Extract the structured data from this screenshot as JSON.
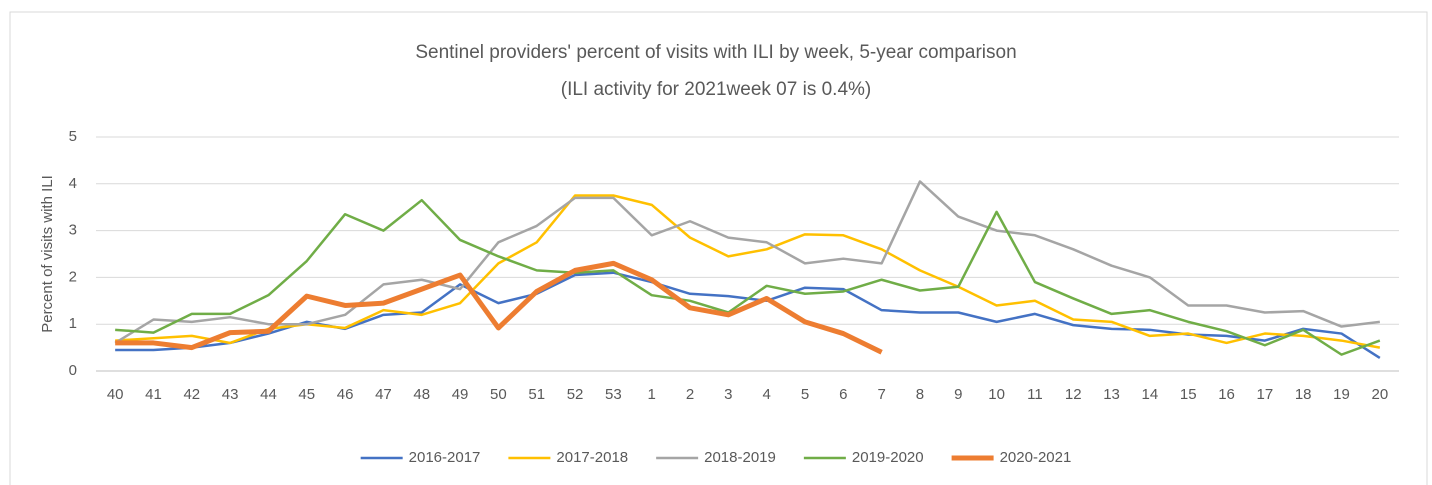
{
  "chart_data": {
    "type": "line",
    "title": "Sentinel providers' percent of visits with ILI by week, 5-year comparison",
    "subtitle": "(ILI activity for 2021week 07 is 0.4%)",
    "y_label": "Percent of visits with ILI",
    "categories": [
      "40",
      "41",
      "42",
      "43",
      "44",
      "45",
      "46",
      "47",
      "48",
      "49",
      "50",
      "51",
      "52",
      "53",
      "1",
      "2",
      "3",
      "4",
      "5",
      "6",
      "7",
      "8",
      "9",
      "10",
      "11",
      "12",
      "13",
      "14",
      "15",
      "16",
      "17",
      "18",
      "19",
      "20"
    ],
    "ylim": [
      0,
      5
    ],
    "yticks": [
      0,
      1,
      2,
      3,
      4,
      5
    ],
    "grid": true,
    "legend": "bottom",
    "series": [
      {
        "name": "2016-2017",
        "color": "#4472c4",
        "values": [
          0.45,
          0.45,
          0.5,
          0.6,
          0.8,
          1.05,
          0.9,
          1.2,
          1.25,
          1.85,
          1.45,
          1.65,
          2.05,
          2.1,
          1.9,
          1.65,
          1.6,
          1.5,
          1.78,
          1.75,
          1.3,
          1.25,
          1.25,
          1.05,
          1.22,
          0.98,
          0.9,
          0.88,
          0.78,
          0.75,
          0.65,
          0.9,
          0.8,
          0.28
        ]
      },
      {
        "name": "2017-2018",
        "color": "#ffc000",
        "values": [
          0.65,
          0.7,
          0.75,
          0.6,
          0.9,
          1.0,
          0.92,
          1.3,
          1.2,
          1.45,
          2.3,
          2.75,
          3.75,
          3.75,
          3.55,
          2.85,
          2.45,
          2.6,
          2.92,
          2.9,
          2.6,
          2.15,
          1.8,
          1.4,
          1.5,
          1.1,
          1.05,
          0.75,
          0.8,
          0.6,
          0.8,
          0.75,
          0.65,
          0.5
        ]
      },
      {
        "name": "2018-2019",
        "color": "#a5a5a5",
        "values": [
          0.6,
          1.1,
          1.05,
          1.15,
          1.0,
          1.0,
          1.2,
          1.85,
          1.95,
          1.75,
          2.75,
          3.1,
          3.7,
          3.7,
          2.9,
          3.2,
          2.85,
          2.75,
          2.3,
          2.4,
          2.3,
          4.05,
          3.3,
          3.0,
          2.9,
          2.6,
          2.25,
          2.0,
          1.4,
          1.4,
          1.25,
          1.28,
          0.95,
          1.05
        ]
      },
      {
        "name": "2019-2020",
        "color": "#70ad47",
        "values": [
          0.88,
          0.82,
          1.22,
          1.22,
          1.62,
          2.35,
          3.35,
          3.0,
          3.65,
          2.8,
          2.45,
          2.15,
          2.1,
          2.15,
          1.62,
          1.5,
          1.25,
          1.82,
          1.65,
          1.7,
          1.95,
          1.72,
          1.8,
          3.4,
          1.9,
          1.55,
          1.22,
          1.3,
          1.05,
          0.85,
          0.55,
          0.88,
          0.35,
          0.65
        ]
      },
      {
        "name": "2020-2021",
        "color": "#ed7d31",
        "values": [
          0.6,
          0.6,
          0.5,
          0.82,
          0.85,
          1.6,
          1.4,
          1.45,
          1.75,
          2.05,
          0.92,
          1.7,
          2.15,
          2.3,
          1.95,
          1.35,
          1.2,
          1.55,
          1.05,
          0.8,
          0.4,
          null,
          null,
          null,
          null,
          null,
          null,
          null,
          null,
          null,
          null,
          null,
          null,
          null
        ]
      }
    ]
  }
}
